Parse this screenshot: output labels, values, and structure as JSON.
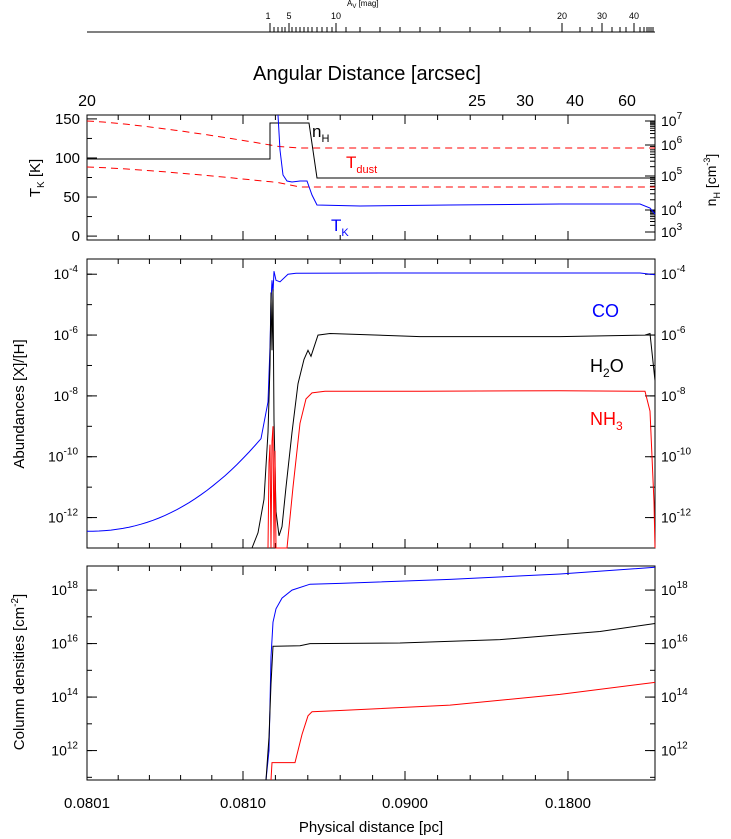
{
  "colors": {
    "black": "#000000",
    "blue": "#0000ff",
    "red": "#ff0000"
  },
  "top_axis": {
    "av_label_prefix": "A",
    "av_label_sub": "V",
    "av_label_suffix": " [mag]",
    "av_ticks": [
      "1",
      "5",
      "10",
      "20",
      "30",
      "40"
    ],
    "angular_title": "Angular Distance [arcsec]",
    "angular_ticks": [
      "20",
      "25",
      "30",
      "40",
      "60"
    ]
  },
  "bottom_axis": {
    "xlabel": "Physical distance [pc]",
    "ticks": [
      "0.0801",
      "0.0810",
      "0.0900",
      "0.1800"
    ]
  },
  "chart_data": [
    {
      "type": "line",
      "panel": "temperature",
      "ylabel_main": "T",
      "ylabel_sub": "K",
      "ylabel_suffix": " [K]",
      "ylim": [
        -5,
        155
      ],
      "yticks": [
        "0",
        "50",
        "100",
        "150"
      ],
      "right_ylabel_main": "n",
      "right_ylabel_sub": "H",
      "right_ylabel_suffix": " [cm",
      "right_ylabel_sup": "-3",
      "right_ylabel_end": "]",
      "right_yticks": [
        "10^3",
        "10^4",
        "10^5",
        "10^6",
        "10^7"
      ],
      "labels": {
        "nh_main": "n",
        "nh_sub": "H",
        "tdust_main": "T",
        "tdust_sub": "dust",
        "tk_main": "T",
        "tk_sub": "K"
      },
      "series_style": {
        "nH": "black",
        "TK": "blue",
        "Tdust": "red-dashed"
      }
    },
    {
      "type": "line",
      "panel": "abundances",
      "ylabel": "Abundances [X]/[H]",
      "yscale": "log",
      "ylim_exp": [
        -13,
        -3.5
      ],
      "yticks_exp": [
        -12,
        -10,
        -8,
        -6,
        -4
      ],
      "series": [
        {
          "name": "CO",
          "color": "blue"
        },
        {
          "name_main": "H",
          "name_sub": "2",
          "name_end": "O",
          "color": "black"
        },
        {
          "name_main": "NH",
          "name_sub": "3",
          "name_end": "",
          "color": "red"
        }
      ]
    },
    {
      "type": "line",
      "panel": "column_densities",
      "ylabel_main": "Column densities [cm",
      "ylabel_sup": "-2",
      "ylabel_end": "]",
      "yscale": "log",
      "ylim_exp": [
        10.9,
        18.9
      ],
      "yticks_exp": [
        12,
        14,
        16,
        18
      ],
      "series_colors": [
        "blue",
        "black",
        "red"
      ]
    }
  ]
}
